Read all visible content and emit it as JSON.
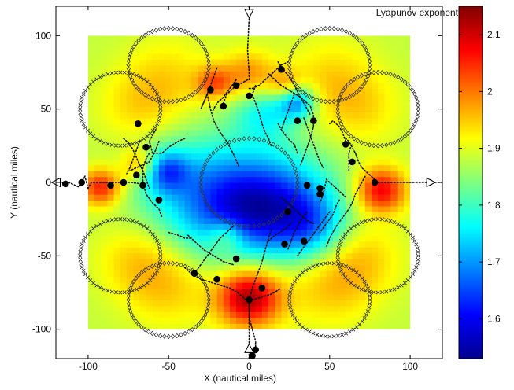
{
  "chart_data": {
    "type": "heatmap",
    "xlabel": "X (nautical miles)",
    "ylabel": "Y (nautical miles)",
    "xlim": [
      -120,
      120
    ],
    "ylim": [
      -120,
      120
    ],
    "xticks": [
      -100,
      -50,
      0,
      50,
      100
    ],
    "yticks": [
      -100,
      -50,
      0,
      50,
      100
    ],
    "grid": false,
    "field_extent": {
      "x": [
        -100,
        100
      ],
      "y": [
        -100,
        100
      ]
    },
    "colorbar": {
      "label": "Lyapunov exponent",
      "min": 1.53,
      "max": 2.15,
      "ticks": [
        1.6,
        1.7,
        1.8,
        1.9,
        2.0,
        2.1
      ],
      "tick_labels": [
        "1.6",
        "1.7",
        "1.8",
        "1.9",
        "2",
        "2.1"
      ],
      "colormap": "jet"
    },
    "background_value": 1.88,
    "hotspots": [
      {
        "x": 0,
        "y": -78,
        "value": 2.13,
        "radius": 14
      },
      {
        "x": -92,
        "y": -3,
        "value": 2.06,
        "radius": 9
      },
      {
        "x": 82,
        "y": -5,
        "value": 2.08,
        "radius": 11
      },
      {
        "x": 0,
        "y": 72,
        "value": 2.0,
        "radius": 12
      },
      {
        "x": -68,
        "y": 12,
        "value": 2.0,
        "radius": 8
      },
      {
        "x": -22,
        "y": 68,
        "value": 2.0,
        "radius": 8
      },
      {
        "x": 22,
        "y": 66,
        "value": 1.98,
        "radius": 8
      },
      {
        "x": -14,
        "y": -36,
        "value": 1.98,
        "radius": 8
      },
      {
        "x": -50,
        "y": -70,
        "value": 1.95,
        "radius": 20
      },
      {
        "x": 50,
        "y": -70,
        "value": 1.95,
        "radius": 20
      },
      {
        "x": -50,
        "y": 70,
        "value": 1.94,
        "radius": 20
      },
      {
        "x": 50,
        "y": 70,
        "value": 1.94,
        "radius": 20
      },
      {
        "x": -70,
        "y": -50,
        "value": 1.94,
        "radius": 18
      },
      {
        "x": 70,
        "y": -50,
        "value": 1.94,
        "radius": 18
      },
      {
        "x": -70,
        "y": 50,
        "value": 1.93,
        "radius": 18
      },
      {
        "x": 70,
        "y": 50,
        "value": 1.93,
        "radius": 18
      },
      {
        "x": -28,
        "y": -8,
        "value": 1.72,
        "radius": 28
      },
      {
        "x": 22,
        "y": -12,
        "value": 1.73,
        "radius": 24
      },
      {
        "x": 38,
        "y": -30,
        "value": 1.75,
        "radius": 16
      },
      {
        "x": -52,
        "y": 8,
        "value": 1.72,
        "radius": 10
      },
      {
        "x": 10,
        "y": 50,
        "value": 1.76,
        "radius": 14
      },
      {
        "x": 30,
        "y": 55,
        "value": 1.7,
        "radius": 8
      },
      {
        "x": 0,
        "y": -20,
        "value": 1.74,
        "radius": 22
      }
    ],
    "circles": [
      {
        "cx": 0,
        "cy": 0,
        "r": 30,
        "marker": "diamond"
      },
      {
        "cx": -50,
        "cy": 80,
        "r": 25,
        "marker": "diamond"
      },
      {
        "cx": 50,
        "cy": 80,
        "r": 25,
        "marker": "diamond"
      },
      {
        "cx": -80,
        "cy": 50,
        "r": 25,
        "marker": "cross"
      },
      {
        "cx": 80,
        "cy": 50,
        "r": 25,
        "marker": "diamond"
      },
      {
        "cx": -80,
        "cy": -50,
        "r": 25,
        "marker": "cross"
      },
      {
        "cx": 80,
        "cy": -50,
        "r": 25,
        "marker": "cross"
      },
      {
        "cx": -50,
        "cy": -80,
        "r": 25,
        "marker": "diamond"
      },
      {
        "cx": 50,
        "cy": -80,
        "r": 25,
        "marker": "cross"
      }
    ],
    "trajectories": [
      [
        [
          0,
          120
        ],
        [
          0,
          112
        ],
        [
          -1,
          90
        ],
        [
          0,
          75
        ],
        [
          0,
          70
        ]
      ],
      [
        [
          -20,
          78
        ],
        [
          -22,
          72
        ],
        [
          -25,
          63
        ],
        [
          -28,
          55
        ],
        [
          -30,
          50
        ],
        [
          -26,
          60
        ],
        [
          -24,
          50
        ],
        [
          -22,
          42
        ],
        [
          -18,
          34
        ],
        [
          -14,
          28
        ],
        [
          -10,
          20
        ],
        [
          -6,
          10
        ]
      ],
      [
        [
          -8,
          70
        ],
        [
          -12,
          64
        ],
        [
          -16,
          58
        ],
        [
          -20,
          54
        ],
        [
          -23,
          48
        ]
      ],
      [
        [
          -1,
          70
        ],
        [
          -4,
          68
        ],
        [
          -8,
          66
        ],
        [
          -14,
          60
        ],
        [
          -16,
          54
        ]
      ],
      [
        [
          0,
          64
        ],
        [
          2,
          64
        ],
        [
          6,
          66
        ],
        [
          10,
          70
        ],
        [
          15,
          75
        ],
        [
          20,
          80
        ],
        [
          24,
          82
        ]
      ],
      [
        [
          18,
          82
        ],
        [
          22,
          76
        ],
        [
          26,
          70
        ],
        [
          30,
          62
        ],
        [
          34,
          54
        ],
        [
          38,
          46
        ]
      ],
      [
        [
          12,
          74
        ],
        [
          16,
          70
        ],
        [
          20,
          66
        ],
        [
          26,
          62
        ],
        [
          32,
          58
        ],
        [
          38,
          52
        ],
        [
          40,
          46
        ],
        [
          40,
          38
        ],
        [
          38,
          30
        ],
        [
          36,
          24
        ],
        [
          34,
          18
        ],
        [
          32,
          12
        ]
      ],
      [
        [
          34,
          44
        ],
        [
          36,
          38
        ],
        [
          38,
          32
        ],
        [
          40,
          26
        ],
        [
          42,
          20
        ],
        [
          44,
          14
        ],
        [
          46,
          10
        ]
      ],
      [
        [
          28,
          60
        ],
        [
          26,
          54
        ],
        [
          24,
          48
        ],
        [
          22,
          42
        ],
        [
          20,
          36
        ]
      ],
      [
        [
          4,
          66
        ],
        [
          2,
          60
        ],
        [
          4,
          54
        ],
        [
          6,
          48
        ],
        [
          8,
          40
        ],
        [
          10,
          34
        ],
        [
          12,
          30
        ],
        [
          14,
          24
        ]
      ],
      [
        [
          18,
          40
        ],
        [
          20,
          36
        ],
        [
          24,
          30
        ],
        [
          28,
          26
        ],
        [
          30,
          20
        ]
      ],
      [
        [
          -120,
          0
        ],
        [
          -112,
          0
        ],
        [
          -106,
          -3
        ],
        [
          -102,
          4
        ],
        [
          -100,
          -4
        ],
        [
          -98,
          0
        ],
        [
          -92,
          0
        ],
        [
          -86,
          0
        ],
        [
          -80,
          0
        ],
        [
          -73,
          0
        ],
        [
          -67,
          -1
        ]
      ],
      [
        [
          -78,
          30
        ],
        [
          -74,
          26
        ],
        [
          -72,
          22
        ],
        [
          -70,
          17
        ],
        [
          -68,
          12
        ],
        [
          -66,
          8
        ],
        [
          -64,
          2
        ],
        [
          -62,
          -4
        ]
      ],
      [
        [
          -68,
          28
        ],
        [
          -70,
          22
        ],
        [
          -72,
          16
        ],
        [
          -74,
          10
        ],
        [
          -76,
          6
        ]
      ],
      [
        [
          -62,
          20
        ],
        [
          -64,
          16
        ],
        [
          -66,
          10
        ],
        [
          -66,
          4
        ],
        [
          -66,
          0
        ],
        [
          -64,
          -8
        ],
        [
          -60,
          -14
        ],
        [
          -56,
          -18
        ],
        [
          -54,
          -24
        ]
      ],
      [
        [
          -56,
          28
        ],
        [
          -58,
          22
        ],
        [
          -60,
          18
        ],
        [
          -62,
          14
        ],
        [
          -66,
          12
        ],
        [
          -70,
          10
        ],
        [
          -74,
          8
        ]
      ],
      [
        [
          -40,
          30
        ],
        [
          -44,
          28
        ],
        [
          -50,
          24
        ],
        [
          -54,
          20
        ],
        [
          -58,
          20
        ],
        [
          -60,
          20
        ]
      ],
      [
        [
          -60,
          20
        ],
        [
          -62,
          28
        ],
        [
          -58,
          36
        ]
      ],
      [
        [
          120,
          0
        ],
        [
          112,
          0
        ],
        [
          104,
          0
        ],
        [
          96,
          0
        ],
        [
          88,
          0
        ],
        [
          80,
          0
        ]
      ],
      [
        [
          78,
          2
        ],
        [
          74,
          6
        ],
        [
          70,
          10
        ],
        [
          68,
          14
        ],
        [
          66,
          20
        ],
        [
          64,
          24
        ],
        [
          62,
          28
        ],
        [
          60,
          30
        ]
      ],
      [
        [
          60,
          28
        ],
        [
          58,
          34
        ],
        [
          56,
          38
        ],
        [
          52,
          42
        ],
        [
          50,
          40
        ]
      ],
      [
        [
          62,
          8
        ],
        [
          62,
          14
        ],
        [
          62,
          20
        ],
        [
          63,
          24
        ],
        [
          64,
          26
        ]
      ],
      [
        [
          72,
          4
        ],
        [
          70,
          0
        ],
        [
          68,
          -4
        ],
        [
          66,
          -8
        ],
        [
          64,
          -14
        ],
        [
          62,
          -18
        ],
        [
          58,
          -24
        ],
        [
          54,
          -30
        ],
        [
          50,
          -38
        ],
        [
          48,
          -44
        ]
      ],
      [
        [
          56,
          -12
        ],
        [
          54,
          -16
        ],
        [
          52,
          -22
        ],
        [
          48,
          -28
        ],
        [
          44,
          -34
        ]
      ],
      [
        [
          60,
          -10
        ],
        [
          56,
          -6
        ],
        [
          52,
          -2
        ],
        [
          48,
          2
        ],
        [
          46,
          -8
        ],
        [
          44,
          -14
        ]
      ],
      [
        [
          36,
          -20
        ],
        [
          32,
          -26
        ],
        [
          28,
          -34
        ],
        [
          26,
          -40
        ],
        [
          24,
          -46
        ]
      ],
      [
        [
          30,
          -50
        ],
        [
          34,
          -44
        ],
        [
          38,
          -38
        ],
        [
          42,
          -32
        ],
        [
          46,
          -26
        ],
        [
          50,
          -20
        ]
      ],
      [
        [
          20,
          -10
        ],
        [
          24,
          -14
        ],
        [
          28,
          -18
        ],
        [
          32,
          -22
        ],
        [
          36,
          -26
        ],
        [
          40,
          -28
        ]
      ],
      [
        [
          0,
          -120
        ],
        [
          0,
          -112
        ],
        [
          0,
          -104
        ],
        [
          0,
          -96
        ],
        [
          0,
          -88
        ],
        [
          0,
          -80
        ]
      ],
      [
        [
          0,
          -80
        ],
        [
          2,
          -72
        ],
        [
          4,
          -66
        ],
        [
          6,
          -60
        ],
        [
          8,
          -54
        ],
        [
          10,
          -46
        ],
        [
          12,
          -38
        ],
        [
          14,
          -32
        ]
      ],
      [
        [
          -2,
          -80
        ],
        [
          -6,
          -76
        ],
        [
          -12,
          -72
        ],
        [
          -18,
          -70
        ],
        [
          -24,
          -68
        ],
        [
          -30,
          -66
        ],
        [
          -36,
          -62
        ],
        [
          -40,
          -58
        ]
      ],
      [
        [
          -34,
          -62
        ],
        [
          -30,
          -56
        ],
        [
          -26,
          -50
        ],
        [
          -22,
          -44
        ],
        [
          -18,
          -38
        ],
        [
          -14,
          -34
        ],
        [
          -10,
          -30
        ]
      ],
      [
        [
          -38,
          -36
        ],
        [
          -34,
          -40
        ],
        [
          -28,
          -46
        ],
        [
          -22,
          -50
        ],
        [
          -16,
          -54
        ],
        [
          -10,
          -56
        ]
      ],
      [
        [
          2,
          -80
        ],
        [
          8,
          -78
        ],
        [
          14,
          -76
        ],
        [
          20,
          -72
        ]
      ],
      [
        [
          4,
          -116
        ],
        [
          4,
          -108
        ],
        [
          2,
          -100
        ],
        [
          0,
          -92
        ],
        [
          0,
          -84
        ]
      ],
      [
        [
          12,
          -40
        ],
        [
          16,
          -36
        ],
        [
          22,
          -32
        ],
        [
          26,
          -28
        ]
      ],
      [
        [
          -50,
          -34
        ],
        [
          -44,
          -36
        ],
        [
          -40,
          -38
        ],
        [
          -36,
          -38
        ]
      ]
    ],
    "aircraft": [
      [
        -24,
        63
      ],
      [
        -8,
        66
      ],
      [
        -16,
        52
      ],
      [
        0,
        59
      ],
      [
        20,
        77
      ],
      [
        40,
        42
      ],
      [
        -69,
        40
      ],
      [
        30,
        42
      ],
      [
        -64,
        24
      ],
      [
        -70,
        5
      ],
      [
        -78,
        0
      ],
      [
        -66,
        -2
      ],
      [
        -56,
        -12
      ],
      [
        -86,
        -2
      ],
      [
        -104,
        0
      ],
      [
        -114,
        -1
      ],
      [
        60,
        26
      ],
      [
        64,
        14
      ],
      [
        78,
        0
      ],
      [
        112,
        0
      ],
      [
        44,
        -4
      ],
      [
        36,
        -2
      ],
      [
        44,
        -8
      ],
      [
        24,
        -20
      ],
      [
        34,
        -40
      ],
      [
        22,
        -42
      ],
      [
        -8,
        -52
      ],
      [
        -34,
        -62
      ],
      [
        -20,
        -66
      ],
      [
        0,
        -80
      ],
      [
        8,
        -72
      ],
      [
        4,
        -114
      ],
      [
        2,
        -118
      ]
    ],
    "endpoints": [
      {
        "x": 0,
        "y": 115,
        "dir": "down"
      },
      {
        "x": -120,
        "y": 0,
        "dir": "left"
      },
      {
        "x": 113,
        "y": 0,
        "dir": "right"
      },
      {
        "x": 0,
        "y": -113,
        "dir": "up"
      }
    ]
  }
}
